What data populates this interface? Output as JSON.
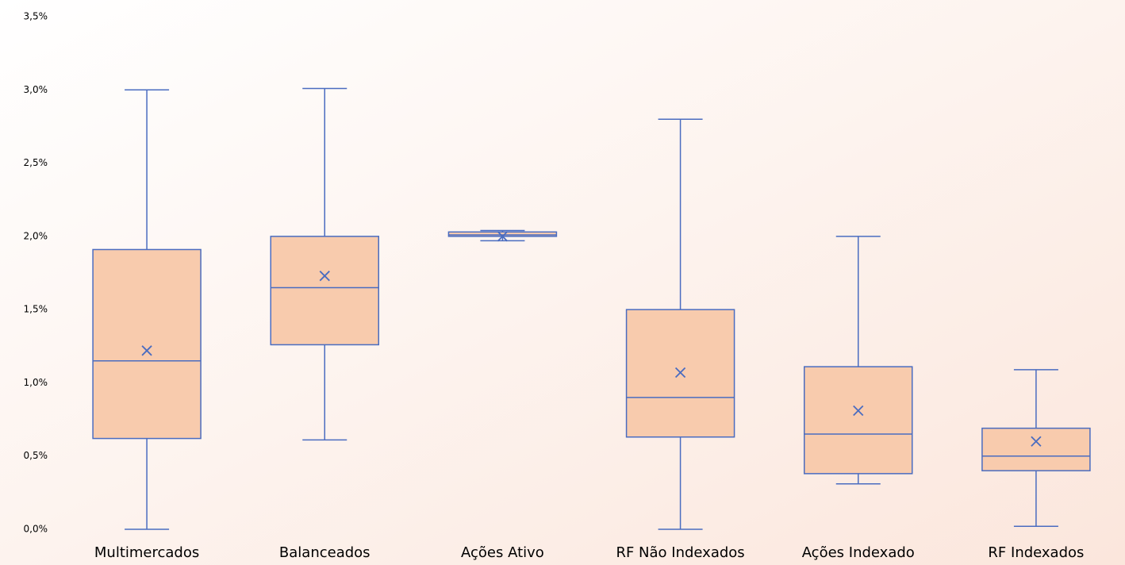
{
  "chart_data": {
    "type": "box",
    "categories": [
      "Multimercados",
      "Balanceados",
      "Ações Ativo",
      "RF Não Indexados",
      "Ações Indexado",
      "RF Indexados"
    ],
    "boxes": [
      {
        "min": 0,
        "q1": 0.62,
        "median": 1.15,
        "q3": 1.91,
        "max": 3.0,
        "mean": 1.22
      },
      {
        "min": 0.61,
        "q1": 1.26,
        "median": 1.65,
        "q3": 2.0,
        "max": 3.01,
        "mean": 1.73
      },
      {
        "min": 1.97,
        "q1": 2.0,
        "median": 2.01,
        "q3": 2.03,
        "max": 2.04,
        "mean": 2.0
      },
      {
        "min": 0,
        "q1": 0.63,
        "median": 0.9,
        "q3": 1.5,
        "max": 2.8,
        "mean": 1.07
      },
      {
        "min": 0.31,
        "q1": 0.38,
        "median": 0.65,
        "q3": 1.11,
        "max": 2.0,
        "mean": 0.81
      },
      {
        "min": 0.02,
        "q1": 0.4,
        "median": 0.5,
        "q3": 0.69,
        "max": 1.09,
        "mean": 0.6
      }
    ],
    "color": "#f8cbad",
    "line_color": "#4a6cc0",
    "ylim": [
      0,
      3.5
    ],
    "yticks": [
      {
        "value": 0,
        "label": "0,0%"
      },
      {
        "value": 0.5,
        "label": "0,5%"
      },
      {
        "value": 1,
        "label": "1,0%"
      },
      {
        "value": 1.5,
        "label": "1,5%"
      },
      {
        "value": 2,
        "label": "2,0%"
      },
      {
        "value": 2.5,
        "label": "2,5%"
      },
      {
        "value": 3,
        "label": "3,0%"
      },
      {
        "value": 3.5,
        "label": "3,5%"
      }
    ],
    "grid": false
  }
}
